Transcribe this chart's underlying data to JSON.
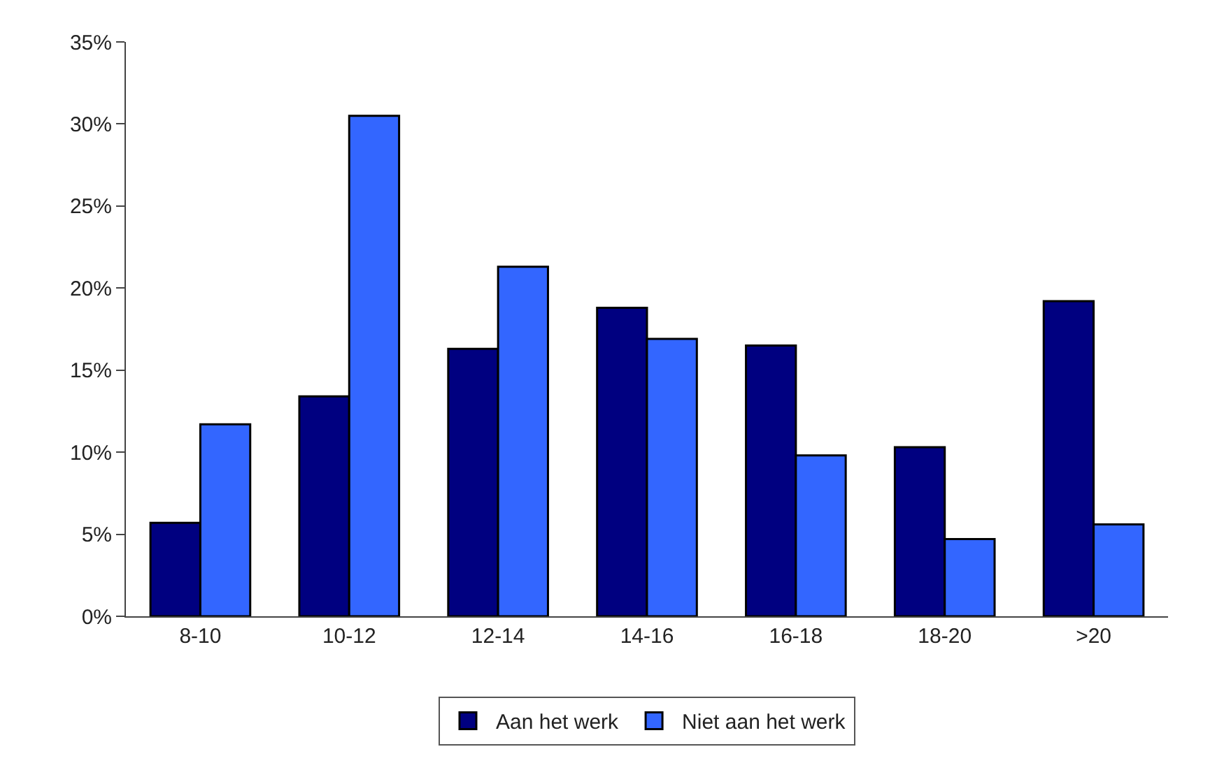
{
  "chart_data": {
    "type": "bar",
    "categories": [
      "8-10",
      "10-12",
      "12-14",
      "14-16",
      "16-18",
      "18-20",
      ">20"
    ],
    "series": [
      {
        "name": "Aan het werk",
        "color": "#000080",
        "values": [
          5.7,
          13.4,
          16.3,
          18.8,
          16.5,
          10.3,
          19.2
        ]
      },
      {
        "name": "Niet aan het werk",
        "color": "#3366ff",
        "values": [
          11.7,
          30.5,
          21.3,
          16.9,
          9.8,
          4.7,
          5.6
        ]
      }
    ],
    "ylim": [
      0,
      35
    ],
    "yticks": [
      {
        "value": 0,
        "label": "0%"
      },
      {
        "value": 5,
        "label": "5%"
      },
      {
        "value": 10,
        "label": "10%"
      },
      {
        "value": 15,
        "label": "15%"
      },
      {
        "value": 20,
        "label": "20%"
      },
      {
        "value": 25,
        "label": "25%"
      },
      {
        "value": 30,
        "label": "30%"
      },
      {
        "value": 35,
        "label": "35%"
      }
    ],
    "legend": "bottom"
  }
}
